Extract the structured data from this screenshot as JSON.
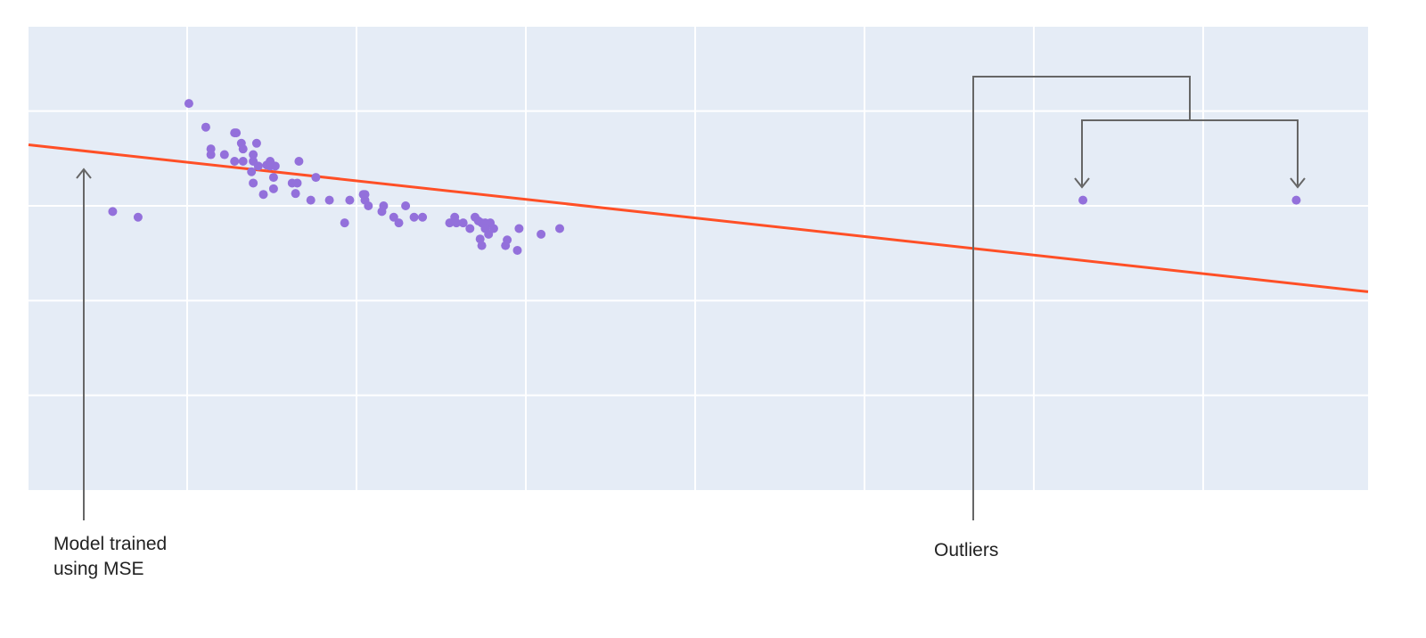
{
  "chart_data": {
    "type": "scatter",
    "title": "",
    "xlabel": "",
    "ylabel": "",
    "xlim": [
      -0.937,
      6.974
    ],
    "ylim": [
      0,
      4.89
    ],
    "grid": true,
    "x_gridlines": [
      0,
      1,
      2,
      3,
      4,
      5,
      6
    ],
    "y_gridlines": [
      1,
      2,
      3,
      4
    ],
    "tick_labels_shown": false,
    "background_color": "#E5ECF6",
    "points": {
      "color": "#9370DB",
      "x": [
        -0.44,
        -0.29,
        0.01,
        0.11,
        0.14,
        0.14,
        0.22,
        0.28,
        0.29,
        0.32,
        0.33,
        0.28,
        0.33,
        0.39,
        0.39,
        0.41,
        0.38,
        0.42,
        0.45,
        0.47,
        0.49,
        0.49,
        0.52,
        0.39,
        0.51,
        0.51,
        0.62,
        0.65,
        0.64,
        0.66,
        0.73,
        0.76,
        0.84,
        0.93,
        0.96,
        1.04,
        1.05,
        1.05,
        1.07,
        1.15,
        1.16,
        1.22,
        1.25,
        1.29,
        1.34,
        1.39,
        1.55,
        1.58,
        1.59,
        1.63,
        1.67,
        1.7,
        1.72,
        1.74,
        1.76,
        1.79,
        1.76,
        1.78,
        1.81,
        1.73,
        1.74,
        1.88,
        1.89,
        1.95,
        1.96,
        2.09,
        2.2,
        5.29,
        6.55
      ],
      "y": [
        2.94,
        2.88,
        4.08,
        3.83,
        3.6,
        3.54,
        3.54,
        3.77,
        3.77,
        3.66,
        3.6,
        3.47,
        3.47,
        3.54,
        3.47,
        3.66,
        3.36,
        3.42,
        3.12,
        3.43,
        3.47,
        3.42,
        3.42,
        3.24,
        3.3,
        3.18,
        3.24,
        3.24,
        3.13,
        3.47,
        3.06,
        3.3,
        3.06,
        2.82,
        3.06,
        3.12,
        3.12,
        3.06,
        3.0,
        2.94,
        3.0,
        2.88,
        2.82,
        3.0,
        2.88,
        2.88,
        2.82,
        2.88,
        2.82,
        2.82,
        2.76,
        2.88,
        2.84,
        2.82,
        2.82,
        2.82,
        2.76,
        2.7,
        2.76,
        2.65,
        2.58,
        2.58,
        2.64,
        2.53,
        2.76,
        2.7,
        2.76,
        3.06,
        3.06
      ]
    },
    "fit_line": {
      "color": "#FF4F26",
      "intercept": 3.46,
      "slope": -0.196
    },
    "annotations": [
      {
        "text_lines": [
          "Model trained",
          "using MSE"
        ],
        "target": "fit_line"
      },
      {
        "text_lines": [
          "Outliers"
        ],
        "target": "outlier_points"
      }
    ],
    "annotation_color": "#666666"
  }
}
